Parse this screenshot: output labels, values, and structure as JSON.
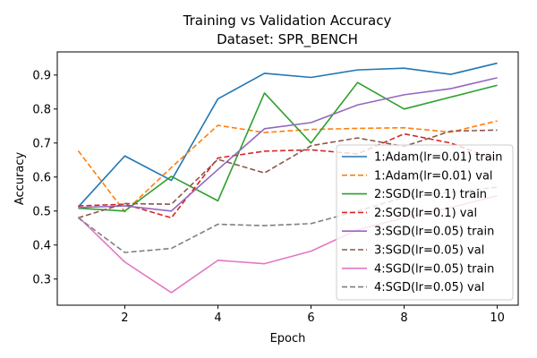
{
  "chart_data": {
    "type": "line",
    "title": "Training vs Validation Accuracy",
    "subtitle": "Dataset: SPR_BENCH",
    "xlabel": "Epoch",
    "ylabel": "Accuracy",
    "xlim": [
      0.55,
      10.45
    ],
    "ylim": [
      0.223,
      0.968
    ],
    "xticks": [
      2,
      4,
      6,
      8,
      10
    ],
    "yticks": [
      0.3,
      0.4,
      0.5,
      0.6,
      0.7,
      0.8,
      0.9
    ],
    "grid": false,
    "legend_position": "center-right",
    "x": [
      1,
      2,
      3,
      4,
      5,
      6,
      7,
      8,
      9,
      10
    ],
    "series": [
      {
        "name": "1:Adam(lr=0.01) train",
        "color": "#1f77b4",
        "dash": "solid",
        "values": [
          0.512,
          0.662,
          0.59,
          0.83,
          0.905,
          0.893,
          0.915,
          0.92,
          0.902,
          0.935
        ]
      },
      {
        "name": "1:Adam(lr=0.01) val",
        "color": "#ff7f0e",
        "dash": "dashed",
        "values": [
          0.677,
          0.498,
          0.628,
          0.752,
          0.731,
          0.74,
          0.743,
          0.745,
          0.732,
          0.765
        ]
      },
      {
        "name": "2:SGD(lr=0.1) train",
        "color": "#2ca02c",
        "dash": "solid",
        "values": [
          0.508,
          0.5,
          0.602,
          0.53,
          0.847,
          0.7,
          0.878,
          0.8,
          0.835,
          0.87
        ]
      },
      {
        "name": "2:SGD(lr=0.1) val",
        "color": "#d62728",
        "dash": "dashed",
        "values": [
          0.515,
          0.52,
          0.48,
          0.656,
          0.676,
          0.68,
          0.668,
          0.727,
          0.7,
          0.65
        ]
      },
      {
        "name": "3:SGD(lr=0.05) train",
        "color": "#9467bd",
        "dash": "solid",
        "values": [
          0.51,
          0.515,
          0.5,
          0.622,
          0.742,
          0.76,
          0.812,
          0.842,
          0.86,
          0.892
        ]
      },
      {
        "name": "3:SGD(lr=0.05) val",
        "color": "#8c564b",
        "dash": "dashed",
        "values": [
          0.48,
          0.522,
          0.52,
          0.652,
          0.612,
          0.692,
          0.715,
          0.69,
          0.735,
          0.738
        ]
      },
      {
        "name": "4:SGD(lr=0.05) train",
        "color": "#e377c2",
        "dash": "solid",
        "values": [
          0.483,
          0.35,
          0.26,
          0.355,
          0.345,
          0.382,
          0.445,
          0.48,
          0.51,
          0.545
        ]
      },
      {
        "name": "4:SGD(lr=0.05) val",
        "color": "#7f7f7f",
        "dash": "dashed",
        "values": [
          0.48,
          0.378,
          0.39,
          0.461,
          0.457,
          0.463,
          0.5,
          0.54,
          0.555,
          0.57
        ]
      }
    ]
  }
}
